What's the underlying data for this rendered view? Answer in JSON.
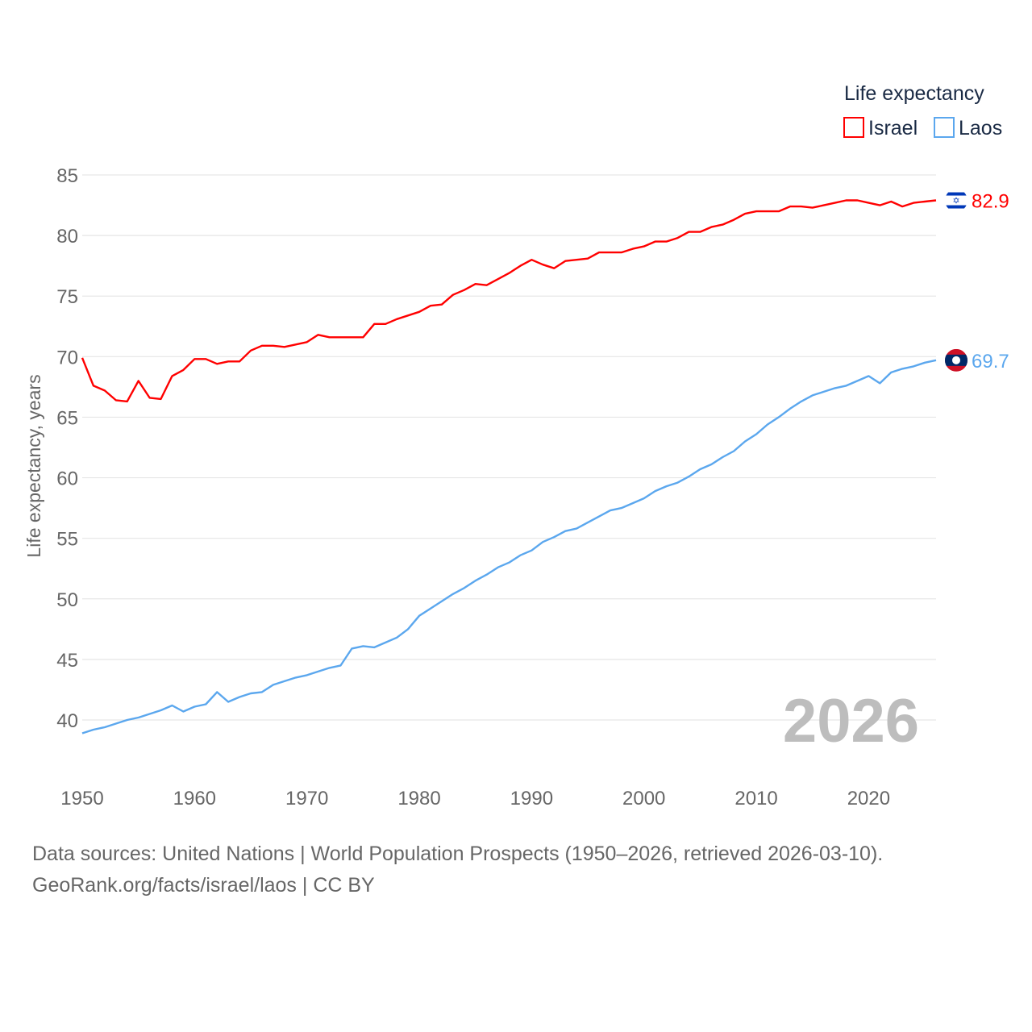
{
  "chart_data": {
    "type": "line",
    "title": "",
    "ylabel": "Life expectancy, years",
    "xlabel": "",
    "ylim": [
      36,
      85
    ],
    "xlim": [
      1950,
      2026
    ],
    "yticks": [
      40,
      45,
      50,
      55,
      60,
      65,
      70,
      75,
      80,
      85
    ],
    "xticks": [
      1950,
      1960,
      1970,
      1980,
      1990,
      2000,
      2010,
      2020
    ],
    "grid": true,
    "legend": {
      "title": "Life expectancy",
      "placement": "top-right"
    },
    "year_label": "2026",
    "x_start": 1950,
    "series": [
      {
        "name": "Israel",
        "color": "#ff0000",
        "end_label": "82.9",
        "values": [
          69.9,
          67.6,
          67.2,
          66.4,
          66.3,
          68.0,
          66.6,
          66.5,
          68.4,
          68.9,
          69.8,
          69.8,
          69.4,
          69.6,
          69.6,
          70.5,
          70.9,
          70.9,
          70.8,
          71.0,
          71.2,
          71.8,
          71.6,
          71.6,
          71.6,
          71.6,
          72.7,
          72.7,
          73.1,
          73.4,
          73.7,
          74.2,
          74.3,
          75.1,
          75.5,
          76.0,
          75.9,
          76.4,
          76.9,
          77.5,
          78.0,
          77.6,
          77.3,
          77.9,
          78.0,
          78.1,
          78.6,
          78.6,
          78.6,
          78.9,
          79.1,
          79.5,
          79.5,
          79.8,
          80.3,
          80.3,
          80.7,
          80.9,
          81.3,
          81.8,
          82.0,
          82.0,
          82.0,
          82.4,
          82.4,
          82.3,
          82.5,
          82.7,
          82.9,
          82.9,
          82.7,
          82.5,
          82.8,
          82.4,
          82.7,
          82.8,
          82.9
        ]
      },
      {
        "name": "Laos",
        "color": "#5ba7ee",
        "end_label": "69.7",
        "values": [
          38.9,
          39.2,
          39.4,
          39.7,
          40.0,
          40.2,
          40.5,
          40.8,
          41.2,
          40.7,
          41.1,
          41.3,
          42.3,
          41.5,
          41.9,
          42.2,
          42.3,
          42.9,
          43.2,
          43.5,
          43.7,
          44.0,
          44.3,
          44.5,
          45.9,
          46.1,
          46.0,
          46.4,
          46.8,
          47.5,
          48.6,
          49.2,
          49.8,
          50.4,
          50.9,
          51.5,
          52.0,
          52.6,
          53.0,
          53.6,
          54.0,
          54.7,
          55.1,
          55.6,
          55.8,
          56.3,
          56.8,
          57.3,
          57.5,
          57.9,
          58.3,
          58.9,
          59.3,
          59.6,
          60.1,
          60.7,
          61.1,
          61.7,
          62.2,
          63.0,
          63.6,
          64.4,
          65.0,
          65.7,
          66.3,
          66.8,
          67.1,
          67.4,
          67.6,
          68.0,
          68.4,
          67.8,
          68.7,
          69.0,
          69.2,
          69.5,
          69.7
        ]
      }
    ]
  },
  "footer": {
    "source": "Data sources: United Nations | World Population Prospects (1950–2026, retrieved 2026-03-10).",
    "link": "GeoRank.org/facts/israel/laos | CC BY"
  }
}
